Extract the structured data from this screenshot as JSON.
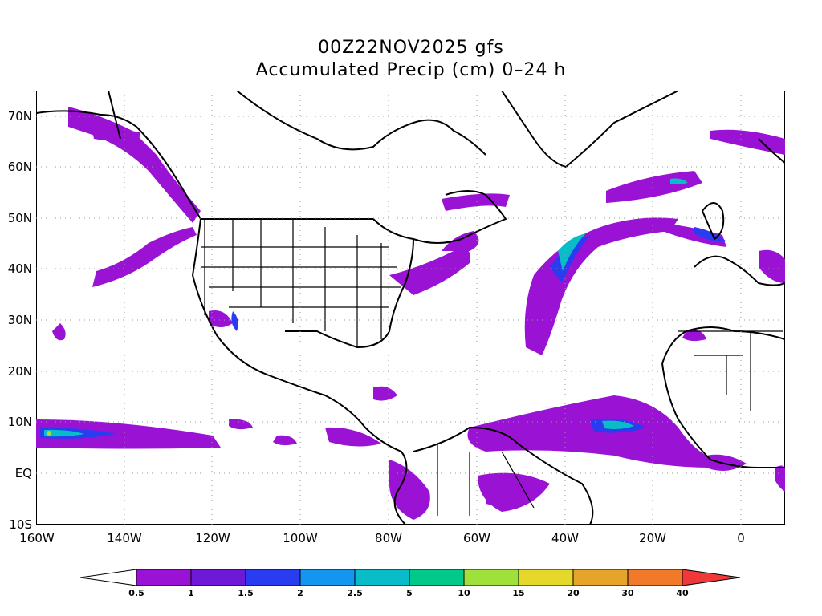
{
  "title": {
    "line1": "00Z22NOV2025 gfs",
    "line2": "Accumulated Precip (cm) 0–24 h"
  },
  "axes": {
    "lat_labels": [
      "70N",
      "60N",
      "50N",
      "40N",
      "30N",
      "20N",
      "10N",
      "EQ",
      "10S"
    ],
    "lon_labels": [
      "160W",
      "140W",
      "120W",
      "100W",
      "80W",
      "60W",
      "40W",
      "20W",
      "0"
    ],
    "lat_range": [
      -10,
      75
    ],
    "lon_range": [
      -160,
      10
    ],
    "grid": "dotted"
  },
  "colorbar": {
    "levels": [
      "0.5",
      "1",
      "1.5",
      "2",
      "2.5",
      "5",
      "10",
      "15",
      "20",
      "30",
      "40"
    ],
    "colors": [
      "#9a12d4",
      "#6e18d8",
      "#2a3cf0",
      "#1496f0",
      "#08bcc8",
      "#00c98a",
      "#9fe03a",
      "#e6d82a",
      "#e6a52a",
      "#f07a2a",
      "#f03838"
    ],
    "low_color": "#ffffff",
    "high_color": "#f03838"
  }
}
